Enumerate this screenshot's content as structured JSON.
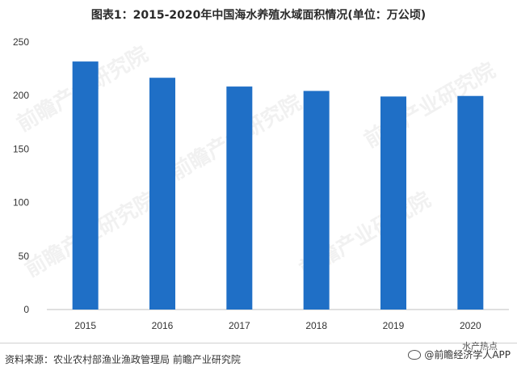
{
  "chart_data": {
    "type": "bar",
    "title": "图表1：2015-2020年中国海水养殖水域面积情况(单位：万公顷)",
    "categories": [
      "2015",
      "2016",
      "2017",
      "2018",
      "2019",
      "2020"
    ],
    "values": [
      231.8,
      216.6,
      208.4,
      204.3,
      199.1,
      199.6
    ],
    "ylim": [
      0,
      250
    ],
    "yticks": [
      0,
      50,
      100,
      150,
      200,
      250
    ],
    "bar_color": "#1f6fc6",
    "grid": false,
    "xlabel": "",
    "ylabel": ""
  },
  "footer": {
    "source": "资料来源：农业农村部渔业渔政管理局 前瞻产业研究院",
    "logo_top": "水产热点",
    "logo_text": "@前瞻经济学人APP"
  }
}
